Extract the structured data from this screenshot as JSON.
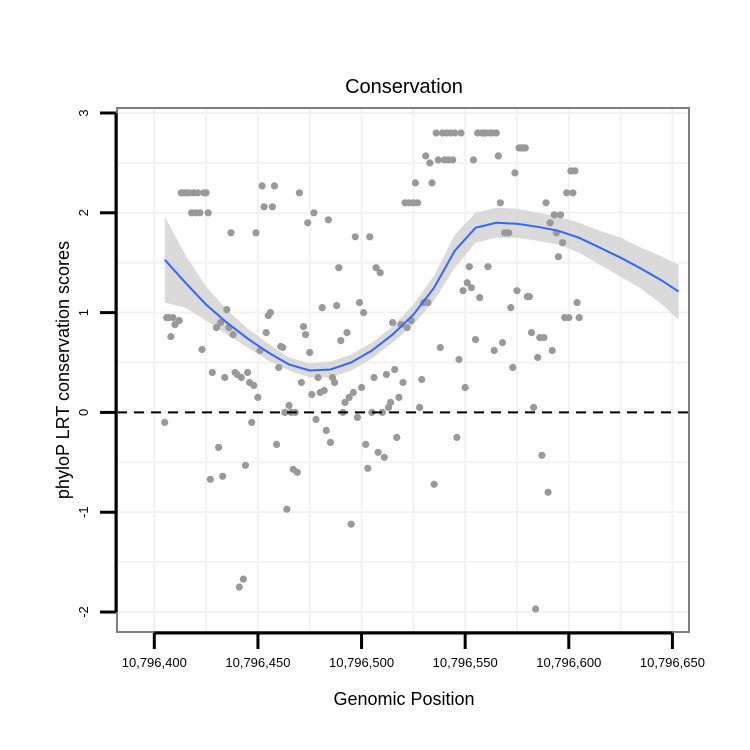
{
  "chart_data": {
    "type": "scatter",
    "title": "Conservation",
    "xlabel": "Genomic Position",
    "ylabel": "phyloP LRT conservation scores",
    "xlim": [
      10796382,
      10796658
    ],
    "ylim": [
      -2.2,
      3.05
    ],
    "x_ticks": [
      10796400,
      10796450,
      10796500,
      10796550,
      10796600,
      10796650
    ],
    "x_tick_labels": [
      "10,796,400",
      "10,796,450",
      "10,796,500",
      "10,796,550",
      "10,796,600",
      "10,796,650"
    ],
    "y_ticks": [
      -2,
      -1,
      0,
      1,
      2,
      3
    ],
    "y_tick_labels": [
      "-2",
      "-1",
      "0",
      "1",
      "2",
      "3"
    ],
    "grid": true,
    "reference_line": {
      "y": 0,
      "style": "dashed",
      "color": "#000000"
    },
    "colors": {
      "points": "#999999",
      "smooth_line": "#3366ff",
      "ribbon": "#d3d3d3",
      "grid": "#f2f2f2",
      "panel_border": "#7f7f7f"
    },
    "points": [
      {
        "x": 10796405,
        "y": -0.1
      },
      {
        "x": 10796406,
        "y": 0.95
      },
      {
        "x": 10796407,
        "y": 0.95
      },
      {
        "x": 10796408,
        "y": 0.76
      },
      {
        "x": 10796409,
        "y": 0.95
      },
      {
        "x": 10796410,
        "y": 0.88
      },
      {
        "x": 10796412,
        "y": 0.92
      },
      {
        "x": 10796413,
        "y": 2.2
      },
      {
        "x": 10796414,
        "y": 2.2
      },
      {
        "x": 10796415,
        "y": 2.2
      },
      {
        "x": 10796416,
        "y": 2.2
      },
      {
        "x": 10796417,
        "y": 2.2
      },
      {
        "x": 10796418,
        "y": 2.0
      },
      {
        "x": 10796419,
        "y": 2.2
      },
      {
        "x": 10796420,
        "y": 2.0
      },
      {
        "x": 10796421,
        "y": 2.2
      },
      {
        "x": 10796422,
        "y": 2.0
      },
      {
        "x": 10796423,
        "y": 0.63
      },
      {
        "x": 10796424,
        "y": 2.2
      },
      {
        "x": 10796425,
        "y": 2.2
      },
      {
        "x": 10796426,
        "y": 2.0
      },
      {
        "x": 10796427,
        "y": -0.67
      },
      {
        "x": 10796428,
        "y": 0.4
      },
      {
        "x": 10796430,
        "y": 0.85
      },
      {
        "x": 10796431,
        "y": -0.35
      },
      {
        "x": 10796432,
        "y": 0.9
      },
      {
        "x": 10796433,
        "y": -0.64
      },
      {
        "x": 10796434,
        "y": 0.35
      },
      {
        "x": 10796435,
        "y": 1.03
      },
      {
        "x": 10796436,
        "y": 0.85
      },
      {
        "x": 10796437,
        "y": 1.8
      },
      {
        "x": 10796438,
        "y": 0.78
      },
      {
        "x": 10796439,
        "y": 0.4
      },
      {
        "x": 10796440,
        "y": 0.38
      },
      {
        "x": 10796441,
        "y": -1.75
      },
      {
        "x": 10796442,
        "y": 0.35
      },
      {
        "x": 10796443,
        "y": -1.67
      },
      {
        "x": 10796444,
        "y": -0.53
      },
      {
        "x": 10796445,
        "y": 0.4
      },
      {
        "x": 10796446,
        "y": 0.3
      },
      {
        "x": 10796447,
        "y": -0.1
      },
      {
        "x": 10796448,
        "y": 0.27
      },
      {
        "x": 10796449,
        "y": 1.8
      },
      {
        "x": 10796450,
        "y": 0.15
      },
      {
        "x": 10796451,
        "y": 0.62
      },
      {
        "x": 10796452,
        "y": 2.27
      },
      {
        "x": 10796453,
        "y": 2.06
      },
      {
        "x": 10796454,
        "y": 0.8
      },
      {
        "x": 10796455,
        "y": 0.97
      },
      {
        "x": 10796456,
        "y": 1.0
      },
      {
        "x": 10796457,
        "y": 2.06
      },
      {
        "x": 10796458,
        "y": 2.27
      },
      {
        "x": 10796459,
        "y": -0.32
      },
      {
        "x": 10796460,
        "y": 0.45
      },
      {
        "x": 10796461,
        "y": 0.66
      },
      {
        "x": 10796462,
        "y": 0.65
      },
      {
        "x": 10796463,
        "y": 0.0
      },
      {
        "x": 10796464,
        "y": -0.97
      },
      {
        "x": 10796465,
        "y": 0.07
      },
      {
        "x": 10796466,
        "y": 0.0
      },
      {
        "x": 10796467,
        "y": -0.57
      },
      {
        "x": 10796468,
        "y": 0.0
      },
      {
        "x": 10796469,
        "y": -0.6
      },
      {
        "x": 10796470,
        "y": 2.2
      },
      {
        "x": 10796471,
        "y": 0.3
      },
      {
        "x": 10796472,
        "y": 0.86
      },
      {
        "x": 10796473,
        "y": 0.78
      },
      {
        "x": 10796474,
        "y": 1.9
      },
      {
        "x": 10796475,
        "y": 0.6
      },
      {
        "x": 10796476,
        "y": 0.18
      },
      {
        "x": 10796477,
        "y": 2.0
      },
      {
        "x": 10796478,
        "y": -0.07
      },
      {
        "x": 10796479,
        "y": 0.35
      },
      {
        "x": 10796480,
        "y": 0.2
      },
      {
        "x": 10796481,
        "y": 1.05
      },
      {
        "x": 10796482,
        "y": 0.22
      },
      {
        "x": 10796483,
        "y": -0.18
      },
      {
        "x": 10796484,
        "y": 1.93
      },
      {
        "x": 10796485,
        "y": -0.3
      },
      {
        "x": 10796486,
        "y": 0.35
      },
      {
        "x": 10796487,
        "y": 0.3
      },
      {
        "x": 10796488,
        "y": 1.07
      },
      {
        "x": 10796489,
        "y": 1.45
      },
      {
        "x": 10796490,
        "y": 0.72
      },
      {
        "x": 10796491,
        "y": 0.0
      },
      {
        "x": 10796492,
        "y": 0.1
      },
      {
        "x": 10796493,
        "y": 0.8
      },
      {
        "x": 10796494,
        "y": 0.15
      },
      {
        "x": 10796495,
        "y": -1.12
      },
      {
        "x": 10796496,
        "y": 0.2
      },
      {
        "x": 10796497,
        "y": 1.76
      },
      {
        "x": 10796498,
        "y": -0.05
      },
      {
        "x": 10796499,
        "y": 1.1
      },
      {
        "x": 10796500,
        "y": 0.25
      },
      {
        "x": 10796501,
        "y": 1.0
      },
      {
        "x": 10796502,
        "y": -0.32
      },
      {
        "x": 10796503,
        "y": -0.56
      },
      {
        "x": 10796504,
        "y": 1.76
      },
      {
        "x": 10796505,
        "y": 0.0
      },
      {
        "x": 10796506,
        "y": 0.35
      },
      {
        "x": 10796507,
        "y": 1.45
      },
      {
        "x": 10796508,
        "y": -0.4
      },
      {
        "x": 10796509,
        "y": 1.4
      },
      {
        "x": 10796510,
        "y": 0.0
      },
      {
        "x": 10796511,
        "y": -0.45
      },
      {
        "x": 10796512,
        "y": 0.38
      },
      {
        "x": 10796513,
        "y": 0.05
      },
      {
        "x": 10796514,
        "y": 0.1
      },
      {
        "x": 10796515,
        "y": 0.9
      },
      {
        "x": 10796516,
        "y": 0.43
      },
      {
        "x": 10796517,
        "y": -0.25
      },
      {
        "x": 10796518,
        "y": 0.15
      },
      {
        "x": 10796519,
        "y": 0.88
      },
      {
        "x": 10796520,
        "y": 0.3
      },
      {
        "x": 10796521,
        "y": 2.1
      },
      {
        "x": 10796522,
        "y": 0.85
      },
      {
        "x": 10796523,
        "y": 2.1
      },
      {
        "x": 10796524,
        "y": 0.92
      },
      {
        "x": 10796525,
        "y": 2.1
      },
      {
        "x": 10796526,
        "y": 2.3
      },
      {
        "x": 10796527,
        "y": 2.1
      },
      {
        "x": 10796528,
        "y": 0.05
      },
      {
        "x": 10796529,
        "y": 0.33
      },
      {
        "x": 10796530,
        "y": 1.1
      },
      {
        "x": 10796531,
        "y": 2.57
      },
      {
        "x": 10796532,
        "y": 1.1
      },
      {
        "x": 10796533,
        "y": 2.5
      },
      {
        "x": 10796534,
        "y": 2.3
      },
      {
        "x": 10796535,
        "y": -0.72
      },
      {
        "x": 10796536,
        "y": 2.8
      },
      {
        "x": 10796537,
        "y": 2.53
      },
      {
        "x": 10796538,
        "y": 0.65
      },
      {
        "x": 10796539,
        "y": 2.8
      },
      {
        "x": 10796540,
        "y": 2.53
      },
      {
        "x": 10796541,
        "y": 2.8
      },
      {
        "x": 10796542,
        "y": 2.53
      },
      {
        "x": 10796543,
        "y": 2.8
      },
      {
        "x": 10796544,
        "y": 2.53
      },
      {
        "x": 10796545,
        "y": 2.8
      },
      {
        "x": 10796546,
        "y": -0.25
      },
      {
        "x": 10796547,
        "y": 0.53
      },
      {
        "x": 10796548,
        "y": 2.8
      },
      {
        "x": 10796549,
        "y": 1.22
      },
      {
        "x": 10796550,
        "y": 0.25
      },
      {
        "x": 10796551,
        "y": 1.3
      },
      {
        "x": 10796552,
        "y": 1.46
      },
      {
        "x": 10796553,
        "y": 1.25
      },
      {
        "x": 10796554,
        "y": 2.53
      },
      {
        "x": 10796555,
        "y": 0.73
      },
      {
        "x": 10796556,
        "y": 2.8
      },
      {
        "x": 10796557,
        "y": 1.15
      },
      {
        "x": 10796558,
        "y": 2.8
      },
      {
        "x": 10796559,
        "y": 2.8
      },
      {
        "x": 10796560,
        "y": 2.8
      },
      {
        "x": 10796561,
        "y": 1.46
      },
      {
        "x": 10796562,
        "y": 2.8
      },
      {
        "x": 10796563,
        "y": 2.8
      },
      {
        "x": 10796564,
        "y": 0.62
      },
      {
        "x": 10796565,
        "y": 2.8
      },
      {
        "x": 10796566,
        "y": 2.57
      },
      {
        "x": 10796567,
        "y": 2.1
      },
      {
        "x": 10796568,
        "y": 0.7
      },
      {
        "x": 10796569,
        "y": 1.8
      },
      {
        "x": 10796570,
        "y": 1.8
      },
      {
        "x": 10796571,
        "y": 1.8
      },
      {
        "x": 10796572,
        "y": 1.05
      },
      {
        "x": 10796573,
        "y": 0.45
      },
      {
        "x": 10796574,
        "y": 2.4
      },
      {
        "x": 10796575,
        "y": 1.22
      },
      {
        "x": 10796576,
        "y": 2.65
      },
      {
        "x": 10796577,
        "y": 2.65
      },
      {
        "x": 10796578,
        "y": 2.65
      },
      {
        "x": 10796579,
        "y": 2.65
      },
      {
        "x": 10796580,
        "y": 1.16
      },
      {
        "x": 10796581,
        "y": 1.16
      },
      {
        "x": 10796582,
        "y": 0.8
      },
      {
        "x": 10796583,
        "y": 0.05
      },
      {
        "x": 10796584,
        "y": -1.97
      },
      {
        "x": 10796585,
        "y": 0.55
      },
      {
        "x": 10796586,
        "y": 0.75
      },
      {
        "x": 10796587,
        "y": -0.43
      },
      {
        "x": 10796588,
        "y": 0.75
      },
      {
        "x": 10796589,
        "y": 2.1
      },
      {
        "x": 10796590,
        "y": -0.8
      },
      {
        "x": 10796591,
        "y": 1.9
      },
      {
        "x": 10796592,
        "y": 0.62
      },
      {
        "x": 10796593,
        "y": 1.98
      },
      {
        "x": 10796594,
        "y": 1.8
      },
      {
        "x": 10796595,
        "y": 1.56
      },
      {
        "x": 10796596,
        "y": 1.98
      },
      {
        "x": 10796597,
        "y": 1.7
      },
      {
        "x": 10796598,
        "y": 0.95
      },
      {
        "x": 10796599,
        "y": 2.2
      },
      {
        "x": 10796600,
        "y": 0.95
      },
      {
        "x": 10796601,
        "y": 2.42
      },
      {
        "x": 10796602,
        "y": 2.2
      },
      {
        "x": 10796603,
        "y": 2.42
      },
      {
        "x": 10796604,
        "y": 1.1
      },
      {
        "x": 10796605,
        "y": 0.95
      }
    ],
    "smooth": {
      "x": [
        10796405,
        10796415,
        10796425,
        10796435,
        10796445,
        10796455,
        10796465,
        10796475,
        10796485,
        10796495,
        10796505,
        10796515,
        10796525,
        10796535,
        10796545,
        10796555,
        10796565,
        10796575,
        10796585,
        10796595,
        10796605,
        10796615,
        10796625,
        10796635,
        10796645,
        10796653
      ],
      "y": [
        1.53,
        1.3,
        1.08,
        0.9,
        0.74,
        0.6,
        0.48,
        0.42,
        0.43,
        0.5,
        0.62,
        0.78,
        0.98,
        1.25,
        1.62,
        1.85,
        1.9,
        1.89,
        1.86,
        1.82,
        1.75,
        1.65,
        1.55,
        1.44,
        1.32,
        1.21
      ],
      "lo": [
        1.1,
        1.05,
        0.92,
        0.78,
        0.65,
        0.52,
        0.42,
        0.35,
        0.35,
        0.42,
        0.54,
        0.7,
        0.88,
        1.12,
        1.45,
        1.7,
        1.75,
        1.75,
        1.72,
        1.68,
        1.6,
        1.48,
        1.36,
        1.24,
        1.08,
        0.93
      ],
      "hi": [
        1.96,
        1.58,
        1.26,
        1.03,
        0.84,
        0.69,
        0.55,
        0.49,
        0.51,
        0.58,
        0.7,
        0.86,
        1.08,
        1.37,
        1.78,
        2.0,
        2.05,
        2.04,
        2.0,
        1.96,
        1.9,
        1.82,
        1.75,
        1.65,
        1.56,
        1.48
      ]
    }
  }
}
